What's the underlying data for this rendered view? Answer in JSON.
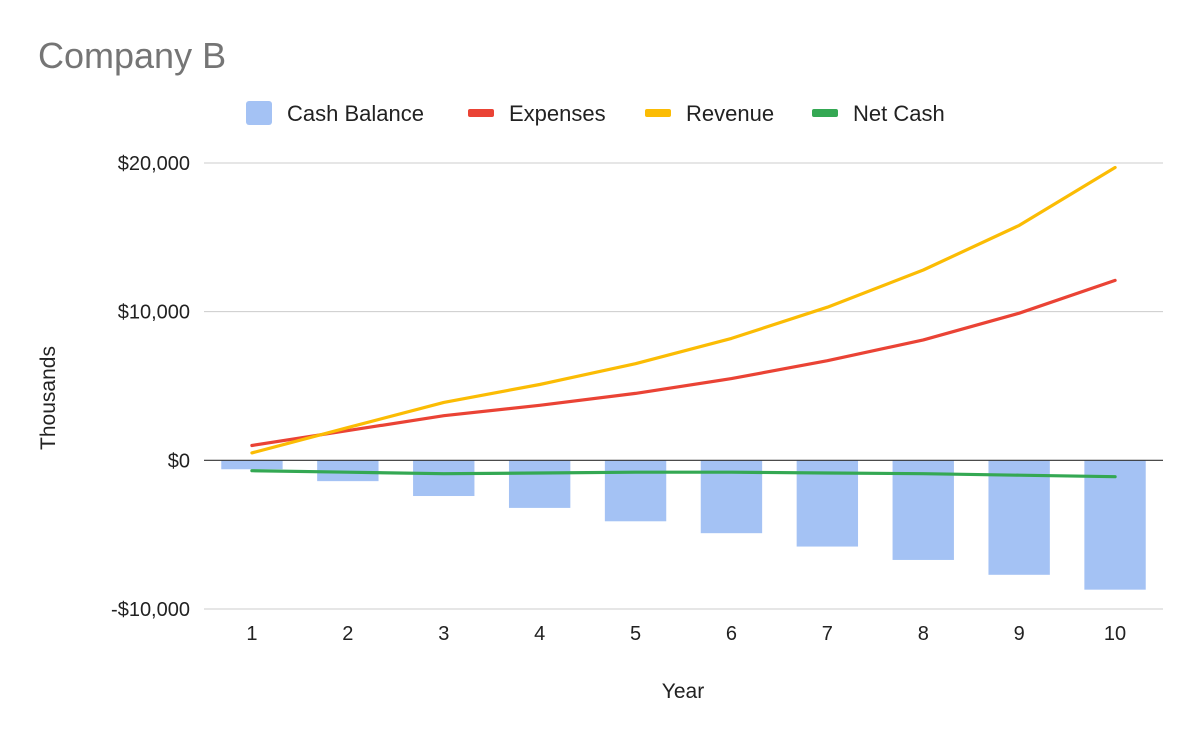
{
  "chart_data": {
    "type": "bar",
    "title": "Company B",
    "xlabel": "Year",
    "ylabel": "Thousands",
    "categories": [
      "1",
      "2",
      "3",
      "4",
      "5",
      "6",
      "7",
      "8",
      "9",
      "10"
    ],
    "ylim": [
      -10000,
      20000
    ],
    "yticks": [
      -10000,
      0,
      10000,
      20000
    ],
    "ytick_labels": [
      "-$10,000",
      "$0",
      "$10,000",
      "$20,000"
    ],
    "grid": true,
    "legend_position": "top",
    "series": [
      {
        "name": "Cash Balance",
        "kind": "bar",
        "color": "#a4c2f4",
        "values": [
          -600,
          -1400,
          -2400,
          -3200,
          -4100,
          -4900,
          -5800,
          -6700,
          -7700,
          -8700
        ]
      },
      {
        "name": "Expenses",
        "kind": "line",
        "color": "#ea4335",
        "values": [
          1000,
          2000,
          3000,
          3700,
          4500,
          5500,
          6700,
          8100,
          9900,
          12100
        ]
      },
      {
        "name": "Revenue",
        "kind": "line",
        "color": "#fbbc04",
        "values": [
          500,
          2200,
          3900,
          5100,
          6500,
          8200,
          10300,
          12800,
          15800,
          19700
        ]
      },
      {
        "name": "Net Cash",
        "kind": "line",
        "color": "#34a853",
        "values": [
          -700,
          -800,
          -900,
          -850,
          -800,
          -800,
          -850,
          -900,
          -1000,
          -1100
        ]
      }
    ]
  }
}
